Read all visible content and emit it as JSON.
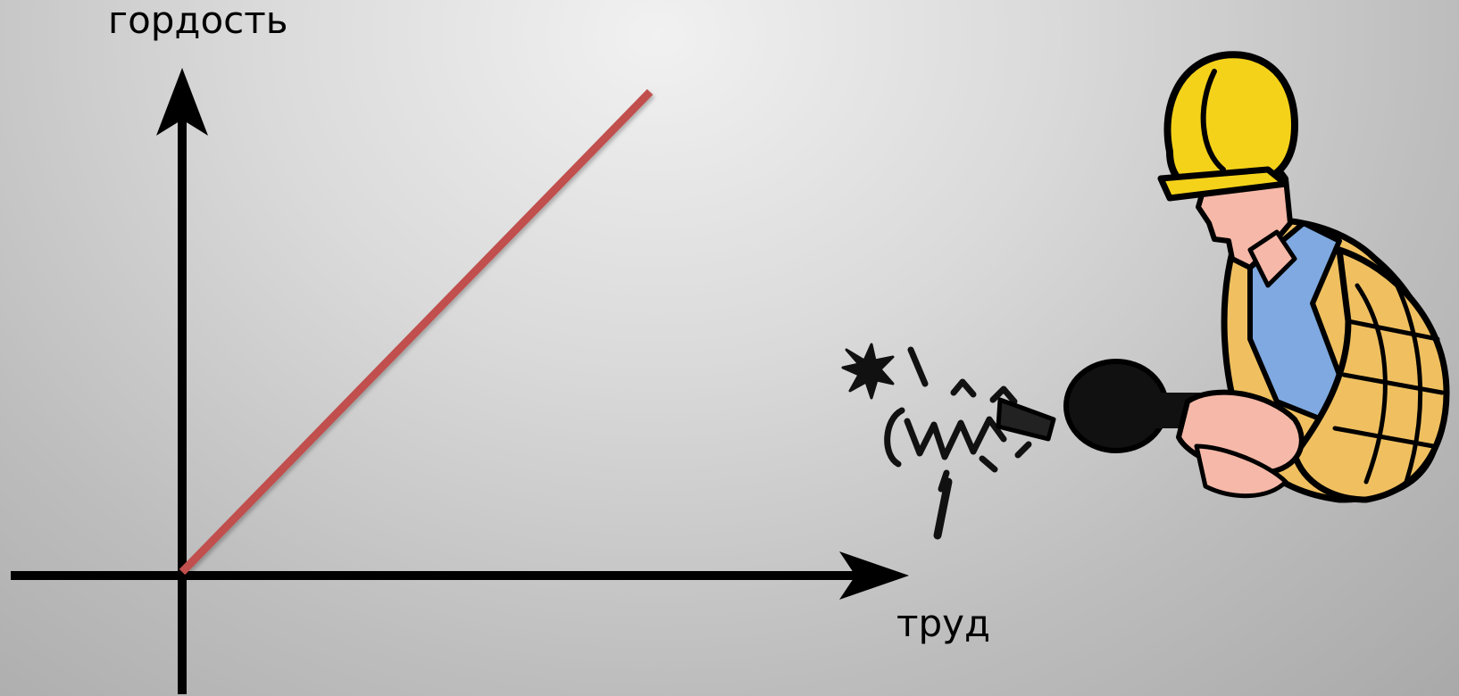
{
  "chart_data": {
    "type": "line",
    "xlabel": "труд",
    "ylabel": "гордость",
    "x": [
      0,
      1
    ],
    "series": [
      {
        "values": [
          0,
          1
        ],
        "color": "#c0504d"
      }
    ],
    "axes": {
      "arrows": true,
      "ticks": false,
      "grid": false
    }
  },
  "illustration": {
    "icon": "construction-worker-drill-icon",
    "colors": {
      "helmet": "#f5d21a",
      "shirt": "#f0c060",
      "overalls": "#7fa9e0",
      "skin": "#f6b8a8",
      "drill": "#111111"
    }
  }
}
